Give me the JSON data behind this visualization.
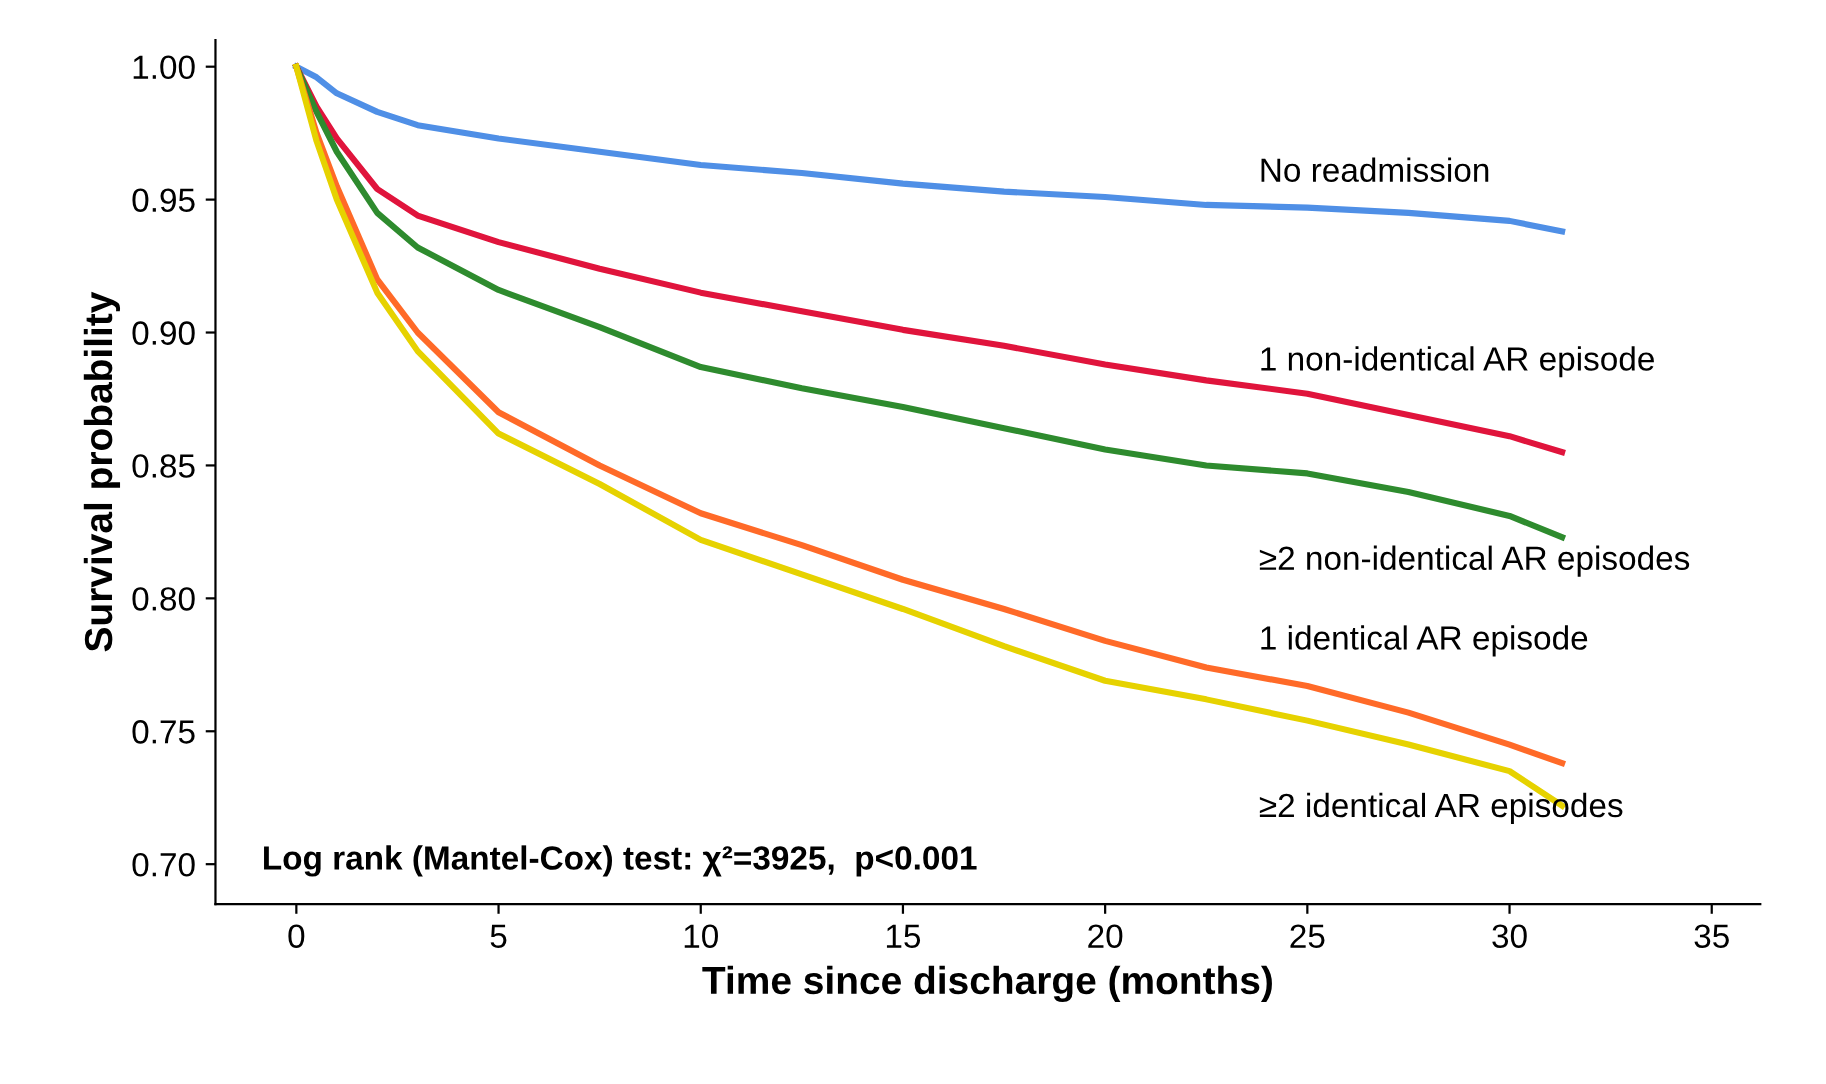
{
  "chart_data": {
    "type": "line",
    "xlabel": "Time since discharge (months)",
    "ylabel": "Survival probability",
    "x": [
      0,
      0.5,
      1,
      2,
      3,
      5,
      7.5,
      10,
      12.5,
      15,
      17.5,
      20,
      22.5,
      25,
      27.5,
      30,
      31.3
    ],
    "series": [
      {
        "name": "No readmission",
        "color": "#4f8fe6",
        "values": [
          1.0,
          0.996,
          0.99,
          0.983,
          0.978,
          0.973,
          0.968,
          0.963,
          0.96,
          0.956,
          0.953,
          0.951,
          0.948,
          0.947,
          0.945,
          0.942,
          0.938
        ]
      },
      {
        "name": "1 non-identical AR episode",
        "color": "#e0143c",
        "values": [
          1.0,
          0.985,
          0.973,
          0.954,
          0.944,
          0.934,
          0.924,
          0.915,
          0.908,
          0.901,
          0.895,
          0.888,
          0.882,
          0.877,
          0.869,
          0.861,
          0.855
        ]
      },
      {
        "name": "≥2 non-identical AR episodes",
        "color": "#2e8b2e",
        "values": [
          1.0,
          0.983,
          0.968,
          0.945,
          0.932,
          0.916,
          0.902,
          0.887,
          0.879,
          0.872,
          0.864,
          0.856,
          0.85,
          0.847,
          0.84,
          0.831,
          0.823
        ]
      },
      {
        "name": "1 identical AR episode",
        "color": "#ff6a28",
        "values": [
          1.0,
          0.975,
          0.955,
          0.92,
          0.9,
          0.87,
          0.85,
          0.832,
          0.82,
          0.807,
          0.796,
          0.784,
          0.774,
          0.767,
          0.757,
          0.745,
          0.738
        ]
      },
      {
        "name": "≥2 identical AR episodes",
        "color": "#e6d200",
        "values": [
          1.0,
          0.972,
          0.95,
          0.915,
          0.893,
          0.862,
          0.843,
          0.822,
          0.809,
          0.796,
          0.782,
          0.769,
          0.762,
          0.754,
          0.745,
          0.735,
          0.722
        ]
      }
    ],
    "annotations": [
      "Log rank (Mantel-Cox) test: χ²=3925,  p<0.001"
    ],
    "xlim": [
      -2,
      36.2
    ],
    "xticks": [
      0,
      5,
      10,
      15,
      20,
      25,
      30,
      35
    ],
    "ylim": [
      0.685,
      1.01
    ],
    "yticks": [
      {
        "value": 1.0,
        "label": "1.00"
      },
      {
        "value": 0.95,
        "label": "0.95"
      },
      {
        "value": 0.9,
        "label": "0.90"
      },
      {
        "value": 0.85,
        "label": "0.85"
      },
      {
        "value": 0.8,
        "label": "0.80"
      },
      {
        "value": 0.75,
        "label": "0.75"
      },
      {
        "value": 0.7,
        "label": "0.70"
      }
    ],
    "grid": false,
    "legend": false,
    "marker": "none",
    "line_style": "solid"
  }
}
